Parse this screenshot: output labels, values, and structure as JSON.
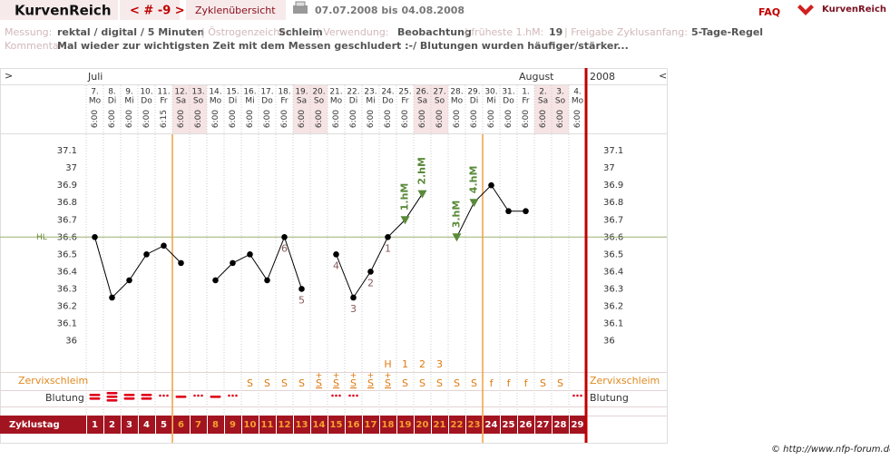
{
  "header": {
    "logo": "KurvenReich",
    "nav": "< # -9 >",
    "tab": "Zyklenübersicht",
    "range": "07.07.2008 bis 04.08.2008",
    "faq": "FAQ",
    "brand": "KurvenReich"
  },
  "info": {
    "fields": [
      [
        "Messung:",
        "rektal / digital / 5 Minuten"
      ],
      [
        "| Östrogenzeichen:",
        "Schleim"
      ],
      [
        "| Verwendung:",
        "Beobachtung"
      ],
      [
        "| früheste 1.hM:",
        19
      ],
      [
        "| Freigabe Zyklusanfang:",
        "5-Tage-Regel"
      ]
    ],
    "comment_label": "Kommentar:",
    "comment": "Mal wieder zur wichtigsten Zeit mit dem Messen geschludert :-/ Blutungen wurden häufiger/stärker..."
  },
  "chart_data": {
    "type": "line",
    "nav_prev": ">",
    "nav_next": "<",
    "year": "2008",
    "months": [
      "Juli",
      null,
      null,
      null,
      null,
      null,
      null,
      null,
      null,
      null,
      null,
      null,
      null,
      null,
      null,
      null,
      null,
      null,
      null,
      null,
      null,
      null,
      null,
      null,
      null,
      "August",
      null,
      null,
      null
    ],
    "categories": [
      "7.",
      "8.",
      "9.",
      "10.",
      "11.",
      "12.",
      "13.",
      "14.",
      "15.",
      "16.",
      "17.",
      "18.",
      "19.",
      "20.",
      "21.",
      "22.",
      "23.",
      "24.",
      "25.",
      "26.",
      "27.",
      "28.",
      "29.",
      "30.",
      "31.",
      "1.",
      "2.",
      "3.",
      "4."
    ],
    "weekdays": [
      "Mo",
      "Di",
      "Mi",
      "Do",
      "Fr",
      "Sa",
      "So",
      "Mo",
      "Di",
      "Mi",
      "Do",
      "Fr",
      "Sa",
      "So",
      "Mo",
      "Di",
      "Mi",
      "Do",
      "Fr",
      "Sa",
      "So",
      "Mo",
      "Di",
      "Mi",
      "Do",
      "Fr",
      "Sa",
      "So",
      "Mo"
    ],
    "times": [
      "6:00",
      "6:00",
      "6:00",
      "6:00",
      "6:15",
      "6:00",
      "6:00",
      "6:00",
      "6:00",
      "6:00",
      "6:00",
      "6:00",
      "6:00",
      "6:00",
      "6:00",
      "6:00",
      "6:00",
      "6:00",
      "6:00",
      "6:00",
      "6:00",
      "6:00",
      "6:00",
      "6:00",
      "6:00",
      "6:00",
      "6:00",
      "6:00",
      "6:00"
    ],
    "values": [
      36.6,
      36.25,
      36.35,
      36.5,
      36.55,
      36.45,
      null,
      36.35,
      36.45,
      36.5,
      36.35,
      36.6,
      36.3,
      null,
      36.5,
      36.25,
      36.4,
      36.6,
      36.7,
      36.85,
      null,
      36.6,
      36.8,
      36.9,
      36.75,
      36.75,
      null,
      null,
      null
    ],
    "color": "#000000",
    "point_labels": [
      null,
      null,
      null,
      null,
      null,
      null,
      null,
      null,
      null,
      null,
      null,
      "6",
      "5",
      null,
      "4",
      "3",
      "2",
      "1",
      null,
      null,
      null,
      null,
      null,
      null,
      null,
      null,
      null,
      null,
      null
    ],
    "hm_labels": [
      null,
      null,
      null,
      null,
      null,
      null,
      null,
      null,
      null,
      null,
      null,
      null,
      null,
      null,
      null,
      null,
      null,
      null,
      "1.hM",
      "2.hM",
      null,
      "3.hM",
      "4.hM",
      null,
      null,
      null,
      null,
      null,
      null
    ],
    "hm_color": "#5a8a3a",
    "ylim": [
      35.83,
      37.2
    ],
    "yticks": [
      36,
      36.1,
      36.2,
      36.3,
      36.4,
      36.5,
      36.6,
      36.7,
      36.8,
      36.9,
      37,
      37.1
    ],
    "hl": 36.6,
    "hl_label": "HL",
    "peak_labels": [
      null,
      null,
      null,
      null,
      null,
      null,
      null,
      null,
      null,
      null,
      null,
      null,
      null,
      null,
      null,
      null,
      null,
      "H",
      "1",
      "2",
      "3",
      null,
      null,
      null,
      null,
      null,
      null,
      null,
      null
    ],
    "cervical_label": "Zervixschleim",
    "cervical": [
      null,
      null,
      null,
      null,
      null,
      null,
      null,
      null,
      null,
      "S",
      "S",
      "S",
      "S",
      "S",
      "S",
      "S",
      "S",
      "S",
      "S",
      "S",
      "S",
      "S",
      "S",
      "f",
      "f",
      "f",
      "S",
      "S",
      null
    ],
    "cervical_plus": [
      null,
      null,
      null,
      null,
      null,
      null,
      null,
      null,
      null,
      null,
      null,
      null,
      null,
      "+",
      "+",
      "+",
      "+",
      "+",
      null,
      null,
      null,
      null,
      null,
      null,
      null,
      null,
      null,
      null,
      null
    ],
    "bleeding_label": "Blutung",
    "bleeding": [
      2,
      3,
      2,
      2,
      0,
      1,
      0,
      1,
      0,
      null,
      null,
      null,
      null,
      null,
      0,
      0,
      null,
      null,
      null,
      null,
      null,
      null,
      null,
      null,
      null,
      null,
      null,
      null,
      0
    ],
    "cycle_label": "Zyklustag",
    "cycle_days": [
      1,
      2,
      3,
      4,
      5,
      6,
      7,
      8,
      9,
      10,
      11,
      12,
      13,
      14,
      15,
      16,
      17,
      18,
      19,
      20,
      21,
      22,
      23,
      24,
      25,
      26,
      27,
      28,
      29
    ]
  },
  "footer": "© http://www.nfp-forum.de"
}
